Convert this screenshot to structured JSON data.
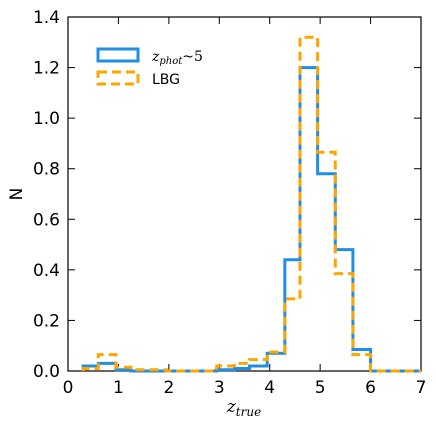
{
  "chart_data": {
    "type": "histogram",
    "xlabel_main": "z",
    "xlabel_sub": "true",
    "ylabel": "N",
    "xlim": [
      0,
      7
    ],
    "ylim": [
      0,
      1.4
    ],
    "xticks": [
      "0",
      "1",
      "2",
      "3",
      "4",
      "5",
      "6",
      "7"
    ],
    "yticks": [
      "0.0",
      "0.2",
      "0.4",
      "0.6",
      "0.8",
      "1.0",
      "1.2",
      "1.4"
    ],
    "grid": false,
    "legend_position": "top-left",
    "series": [
      {
        "name": "z",
        "name_sub": "phot",
        "name_suffix": "~5",
        "color": "#1f8fe6",
        "style": "solid",
        "edges": [
          0.3,
          0.6,
          0.95,
          1.25,
          1.6,
          1.95,
          2.3,
          2.6,
          2.95,
          3.3,
          3.6,
          3.95,
          4.3,
          4.6,
          4.95,
          5.3,
          5.65,
          6.0,
          7.0
        ],
        "values": [
          0.02,
          0.03,
          0.005,
          0.0,
          0.0,
          0.0,
          0.0,
          0.0,
          0.005,
          0.01,
          0.02,
          0.07,
          0.44,
          1.2,
          0.78,
          0.48,
          0.085,
          0.0
        ]
      },
      {
        "name": "LBG",
        "color": "#ffa500",
        "style": "dashed",
        "edges": [
          0.3,
          0.6,
          0.95,
          1.25,
          1.6,
          1.95,
          2.3,
          2.6,
          2.95,
          3.3,
          3.6,
          3.95,
          4.3,
          4.6,
          4.95,
          5.3,
          5.65,
          6.0,
          7.0
        ],
        "values": [
          0.01,
          0.065,
          0.015,
          0.005,
          0.005,
          0.0,
          0.0,
          0.0,
          0.02,
          0.03,
          0.045,
          0.075,
          0.285,
          1.32,
          0.865,
          0.385,
          0.065,
          0.0
        ]
      }
    ]
  }
}
